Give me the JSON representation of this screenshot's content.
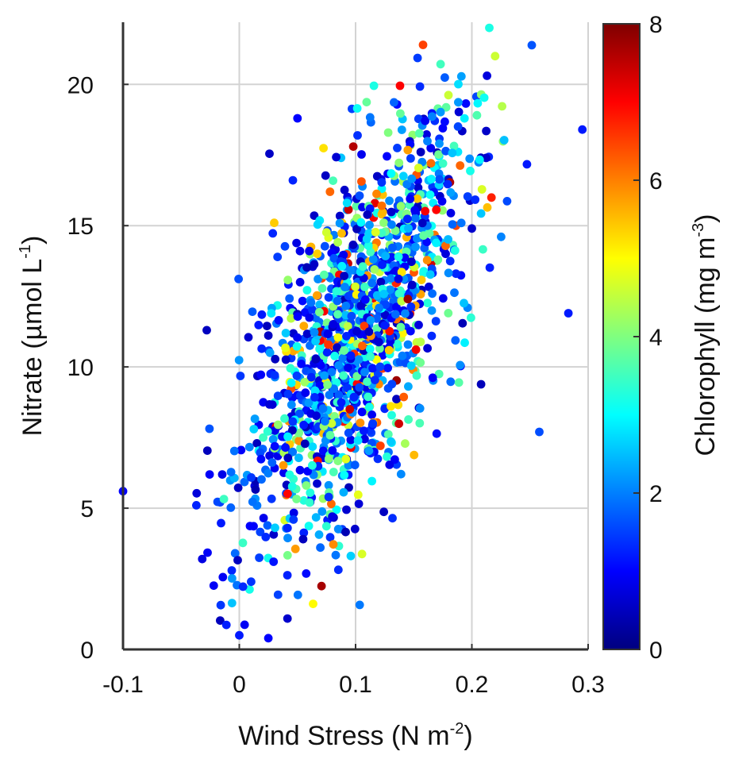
{
  "chart_data": {
    "type": "scatter",
    "title": "",
    "xlabel": {
      "main": "Wind Stress (N m",
      "sup": "-2",
      "tail": ")"
    },
    "ylabel": {
      "main": "Nitrate (µmol L",
      "sup": "-1",
      "tail": ")"
    },
    "colorbar_label": {
      "main": "Chlorophyll (mg m",
      "sup": "-3",
      "tail": ")"
    },
    "xlim": [
      -0.1,
      0.3
    ],
    "ylim": [
      0,
      22.2
    ],
    "clim": [
      0,
      8
    ],
    "x_ticks": [
      -0.1,
      0,
      0.1,
      0.2,
      0.3
    ],
    "x_tick_labels": [
      "-0.1",
      "0",
      "0.1",
      "0.2",
      "0.3"
    ],
    "y_ticks": [
      0,
      5,
      10,
      15,
      20
    ],
    "y_tick_labels": [
      "0",
      "5",
      "10",
      "15",
      "20"
    ],
    "colorbar_ticks": [
      0,
      2,
      4,
      6,
      8
    ],
    "colorbar_tick_labels": [
      "0",
      "2",
      "4",
      "6",
      "8"
    ],
    "colormap": "jet",
    "grid": true,
    "colorbar_position": "right",
    "point_count": 1400,
    "regression": {
      "slope": 52,
      "intercept": 6.0,
      "x_spread_sd": 0.048,
      "y_noise_sd": 2.9,
      "x_mean": 0.1
    },
    "sample_points": [
      {
        "x": -0.1,
        "y": 5.6,
        "c": 1.0
      },
      {
        "x": 0.0,
        "y": 0.5,
        "c": 1.2
      },
      {
        "x": 0.025,
        "y": 0.4,
        "c": 1.0
      },
      {
        "x": -0.028,
        "y": 11.3,
        "c": 0.5
      },
      {
        "x": 0.05,
        "y": 18.8,
        "c": 1.0
      },
      {
        "x": 0.098,
        "y": 17.8,
        "c": 7.6
      },
      {
        "x": 0.145,
        "y": 12.4,
        "c": 7.8
      },
      {
        "x": 0.158,
        "y": 21.4,
        "c": 6.5
      },
      {
        "x": 0.215,
        "y": 22.0,
        "c": 3.2
      },
      {
        "x": 0.22,
        "y": 21.0,
        "c": 4.6
      },
      {
        "x": 0.295,
        "y": 18.4,
        "c": 1.2
      },
      {
        "x": 0.283,
        "y": 11.9,
        "c": 1.2
      },
      {
        "x": 0.258,
        "y": 7.7,
        "c": 1.6
      },
      {
        "x": 0.095,
        "y": 8.5,
        "c": 7.4
      },
      {
        "x": 0.078,
        "y": 16.2,
        "c": 6.2
      },
      {
        "x": 0.03,
        "y": 15.1,
        "c": 5.4
      },
      {
        "x": 0.2,
        "y": 14.9,
        "c": 0.6
      }
    ]
  }
}
